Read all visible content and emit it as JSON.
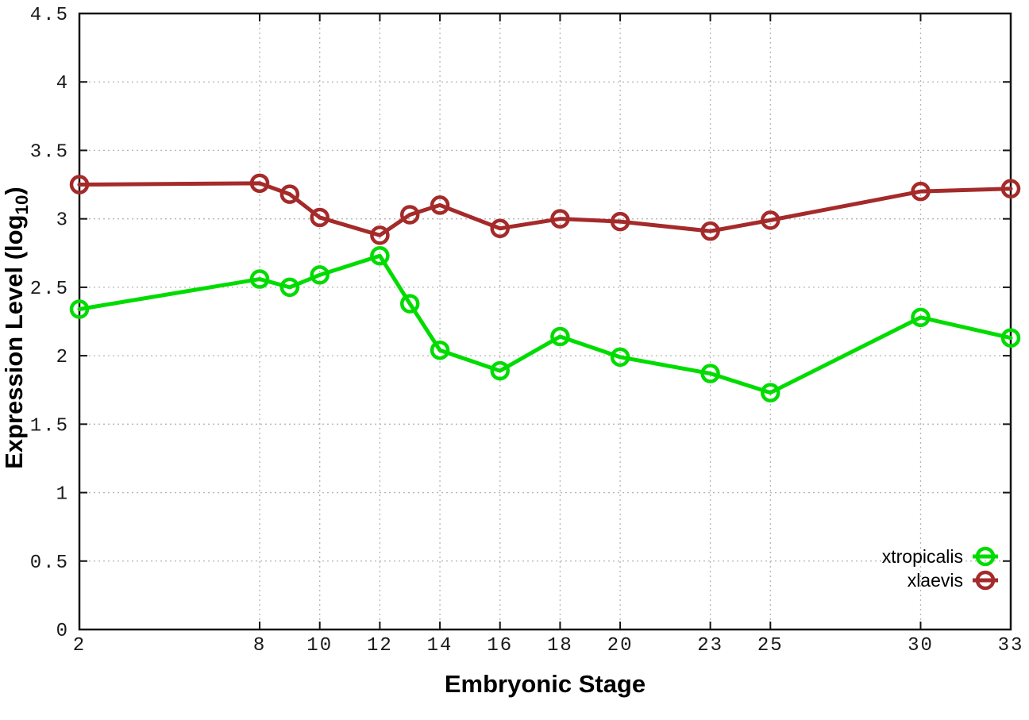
{
  "chart_data": {
    "type": "line",
    "title": "",
    "xlabel": "Embryonic Stage",
    "ylabel": "Expression Level (log10)",
    "ylabel_parts": {
      "main": "Expression Level (log",
      "sub": "10",
      "close": ")"
    },
    "x": [
      2,
      8,
      9,
      10,
      12,
      13,
      14,
      16,
      18,
      20,
      23,
      25,
      30,
      33
    ],
    "series": [
      {
        "name": "xtropicalis",
        "color": "#00dc00",
        "values": [
          2.34,
          2.56,
          2.5,
          2.59,
          2.73,
          2.38,
          2.04,
          1.89,
          2.14,
          1.99,
          1.87,
          1.73,
          2.28,
          2.13
        ]
      },
      {
        "name": "xlaevis",
        "color": "#a52a2a",
        "values": [
          3.25,
          3.26,
          3.18,
          3.01,
          2.88,
          3.03,
          3.1,
          2.93,
          3.0,
          2.98,
          2.91,
          2.99,
          3.2,
          3.22
        ]
      }
    ],
    "xlim": [
      2,
      33
    ],
    "ylim": [
      0,
      4.5
    ],
    "xticks": [
      2,
      8,
      10,
      12,
      14,
      16,
      18,
      20,
      23,
      25,
      30,
      33
    ],
    "xtick_labels": [
      "2",
      "8",
      "10",
      "12",
      "14",
      "16",
      "18",
      "20",
      "23",
      "25",
      "30",
      "33"
    ],
    "yticks": [
      0,
      0.5,
      1,
      1.5,
      2,
      2.5,
      3,
      3.5,
      4,
      4.5
    ],
    "ytick_labels": [
      "0",
      "0.5",
      "1",
      "1.5",
      "2",
      "2.5",
      "3",
      "3.5",
      "4",
      "4.5"
    ],
    "grid": true,
    "marker": "open-circle",
    "legend": {
      "position": "bottom-right",
      "entries": [
        "xtropicalis",
        "xlaevis"
      ]
    },
    "colors": {
      "background": "#ffffff",
      "axis": "#141414",
      "grid": "#b5b5b5",
      "tick_text": "#1a1a1a",
      "xtropicalis": "#00dc00",
      "xlaevis": "#a52a2a"
    }
  }
}
